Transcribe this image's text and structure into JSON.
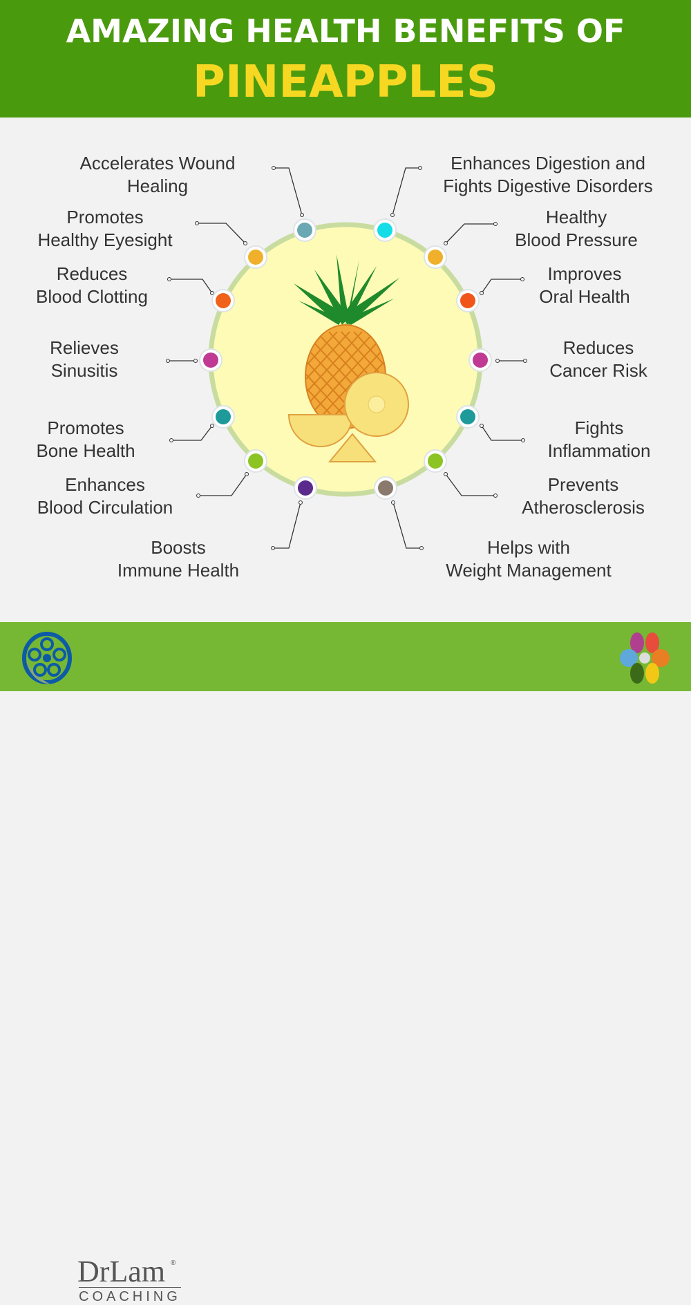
{
  "header": {
    "line1": "AMAZING HEALTH BENEFITS OF",
    "line2": "PINEAPPLES"
  },
  "colors": {
    "header_bg": "#4a9a0e",
    "title_accent": "#f6d823",
    "footer_bg": "#76b833",
    "circle_fill": "#fdfbb5",
    "ring": "#c9dca0"
  },
  "benefits_left": [
    {
      "l1": "Accelerates Wound",
      "l2": "Healing",
      "color": "#6aa8b3"
    },
    {
      "l1": "Promotes",
      "l2": "Healthy Eyesight",
      "color": "#f0b02c"
    },
    {
      "l1": "Reduces",
      "l2": "Blood Clotting",
      "color": "#f0621a"
    },
    {
      "l1": "Relieves",
      "l2": "Sinusitis",
      "color": "#c03a94"
    },
    {
      "l1": "Promotes",
      "l2": "Bone Health",
      "color": "#1e9a9a"
    },
    {
      "l1": "Enhances",
      "l2": "Blood Circulation",
      "color": "#8cc424"
    },
    {
      "l1": "Boosts",
      "l2": "Immune Health",
      "color": "#5a2a8c"
    }
  ],
  "benefits_right": [
    {
      "l1": "Enhances Digestion and",
      "l2": "Fights Digestive Disorders",
      "color": "#14dde8"
    },
    {
      "l1": "Healthy",
      "l2": "Blood Pressure",
      "color": "#f0b02c"
    },
    {
      "l1": "Improves",
      "l2": "Oral Health",
      "color": "#f0561a"
    },
    {
      "l1": "Reduces",
      "l2": "Cancer Risk",
      "color": "#c03a94"
    },
    {
      "l1": "Fights",
      "l2": "Inflammation",
      "color": "#1e9a9a"
    },
    {
      "l1": "Prevents",
      "l2": "Atherosclerosis",
      "color": "#8cc424"
    },
    {
      "l1": "Helps with",
      "l2": "Weight Management",
      "color": "#8a7a6e"
    }
  ],
  "footer": {
    "brand": "DrLam",
    "brand_sub": "COACHING",
    "registered": "®"
  }
}
